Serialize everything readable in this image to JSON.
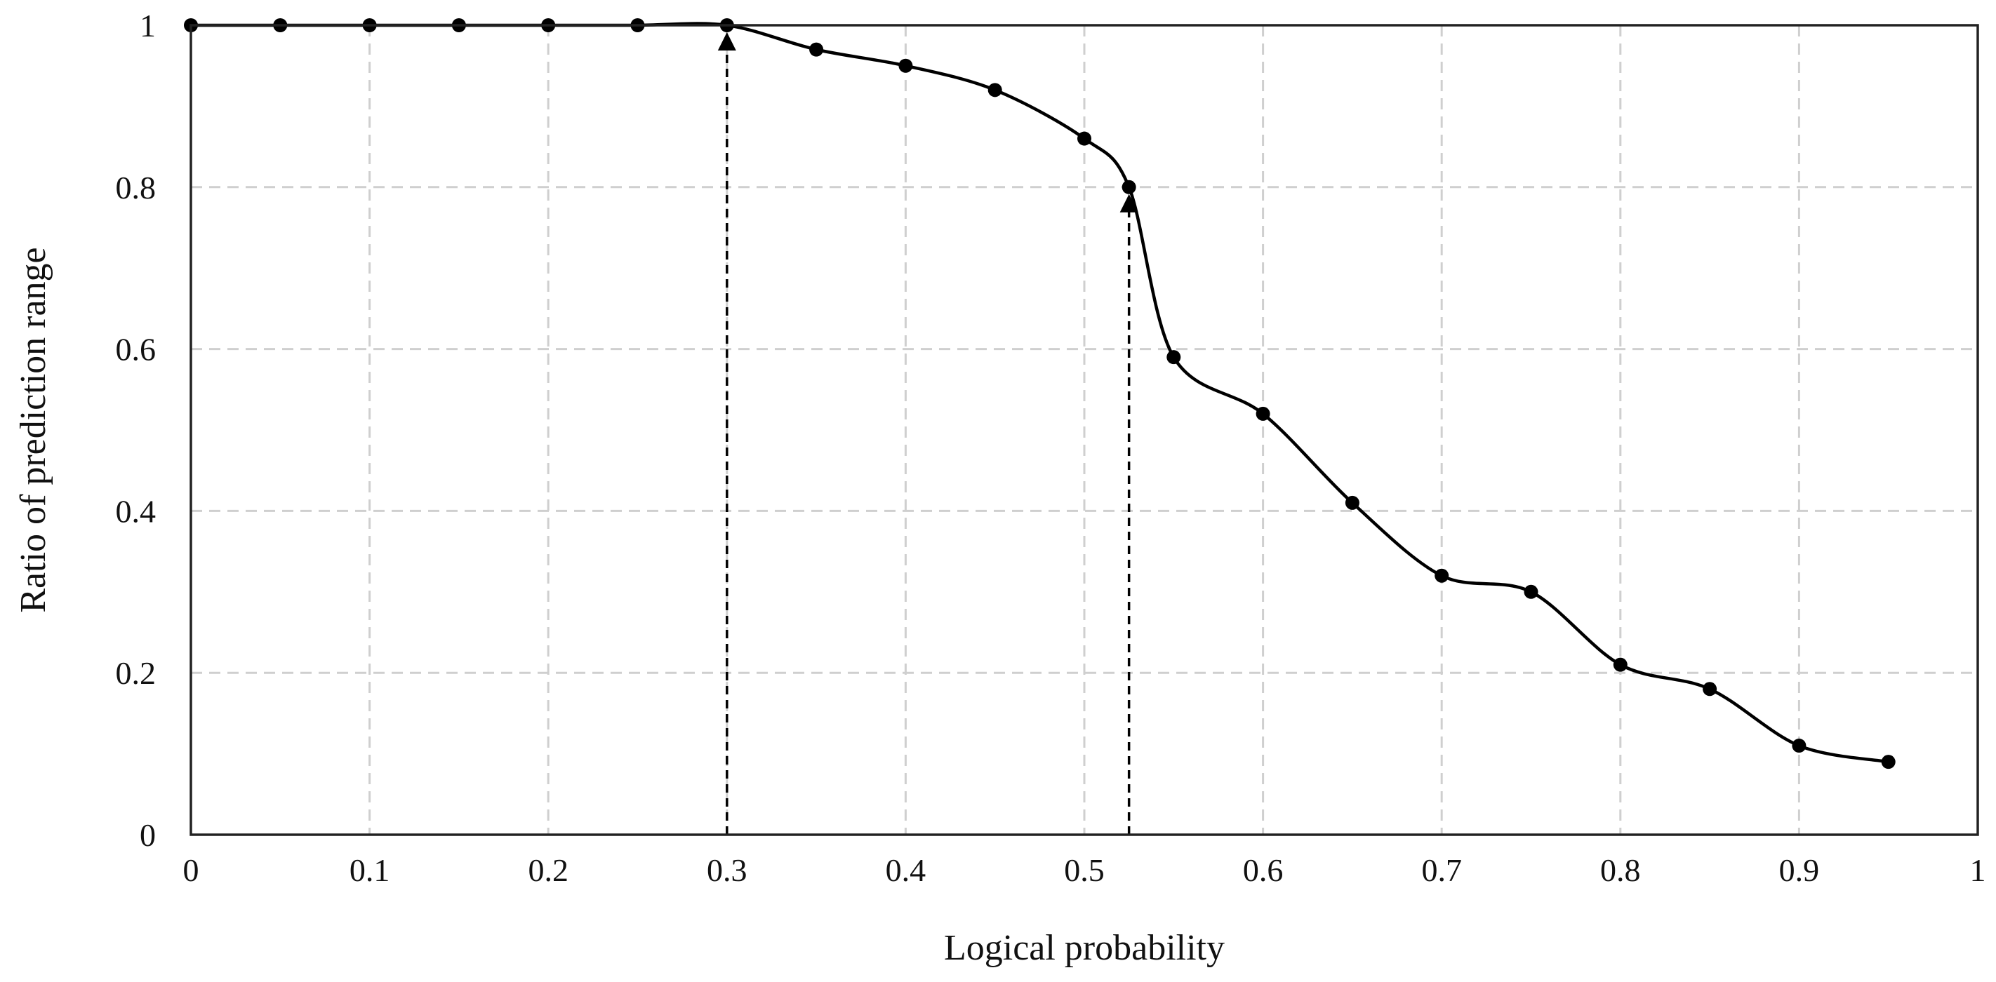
{
  "chart_data": {
    "type": "line",
    "title": "",
    "xlabel": "Logical probability",
    "ylabel": "Ratio of prediction range",
    "xlim": [
      0,
      1
    ],
    "ylim": [
      0,
      1
    ],
    "xticks": [
      "0",
      "0.1",
      "0.2",
      "0.3",
      "0.4",
      "0.5",
      "0.6",
      "0.7",
      "0.8",
      "0.9",
      "1"
    ],
    "yticks": [
      "0",
      "0.2",
      "0.4",
      "0.6",
      "0.8",
      "1"
    ],
    "grid": true,
    "x": [
      0,
      0.05,
      0.1,
      0.15,
      0.2,
      0.25,
      0.3,
      0.35,
      0.4,
      0.45,
      0.5,
      0.525,
      0.55,
      0.6,
      0.65,
      0.7,
      0.75,
      0.8,
      0.85,
      0.9,
      0.95
    ],
    "series": [
      {
        "values": [
          1,
          1,
          1,
          1,
          1,
          1,
          1,
          0.97,
          0.95,
          0.92,
          0.86,
          0.8,
          0.59,
          0.52,
          0.41,
          0.32,
          0.3,
          0.21,
          0.18,
          0.11,
          0.09
        ],
        "color": "#000000"
      }
    ],
    "annotations": [
      {
        "type": "dashed-arrow",
        "x": 0.3,
        "y_from": 0,
        "y_to": 1
      },
      {
        "type": "dashed-arrow",
        "x": 0.525,
        "y_from": 0,
        "y_to": 0.8
      }
    ]
  }
}
